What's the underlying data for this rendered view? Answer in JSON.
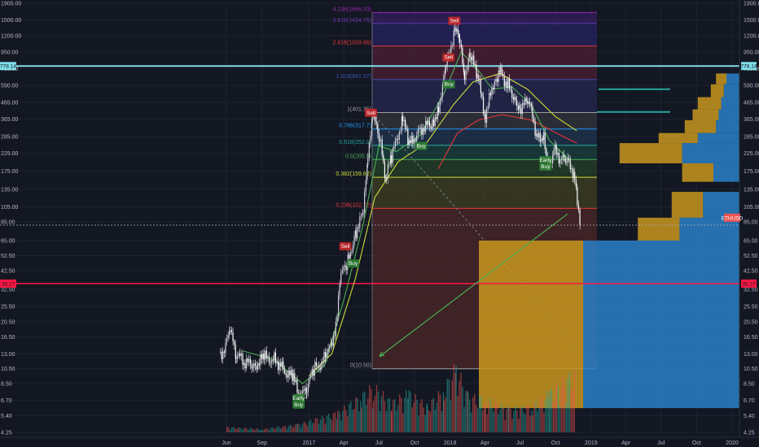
{
  "chart_data": {
    "type": "candlestick",
    "title": "",
    "ylabel": "",
    "xlabel": "",
    "scale": "log",
    "ylim": [
      4.25,
      1900
    ],
    "grid": true,
    "colors": {
      "background": "#131722",
      "up": "#26a69a",
      "down": "#ef5350",
      "ma_fast": "#4caf50",
      "ma_mid": "#cddc39",
      "ma_slow": "#e53935",
      "cyan": "#80deea",
      "red_line": "#ff1744",
      "profile_up": "#2a80c8",
      "profile_down": "#c8961e"
    },
    "y_ticks": [
      "1900.00",
      "1500.00",
      "1200.00",
      "950.00",
      "750.00",
      "590.00",
      "465.00",
      "365.00",
      "285.00",
      "225.00",
      "175.00",
      "135.00",
      "105.00",
      "85.00",
      "65.00",
      "52.50",
      "42.50",
      "32.50",
      "25.50",
      "20.50",
      "16.50",
      "13.00",
      "10.50",
      "8.50",
      "6.70",
      "5.40",
      "4.25"
    ],
    "x_ticks": [
      "Jun",
      "Sep",
      "2017",
      "Apr",
      "Jul",
      "Oct",
      "2018",
      "Apr",
      "Jul",
      "Oct",
      "2019",
      "Apr",
      "Jul",
      "Oct",
      "2020"
    ],
    "price_labels": [
      {
        "text": "778.14",
        "value": 778.14,
        "color": "#80deea"
      },
      {
        "text": "35.27",
        "value": 35.27,
        "color": "#ff1744"
      },
      {
        "text": "ETHUSD",
        "value": 90,
        "color": "#ef5350"
      }
    ],
    "fib_levels": [
      {
        "label": "4.236(1666.33)",
        "value": 1666.33,
        "color": "#9c27b0"
      },
      {
        "label": "3.618(1424.76)",
        "value": 1424.76,
        "color": "#673ab7"
      },
      {
        "label": "2.618(1033.86)",
        "value": 1033.86,
        "color": "#e53935"
      },
      {
        "label": "1.618(641.97)",
        "value": 641.97,
        "color": "#3f51b5"
      },
      {
        "label": "1(401.35)",
        "value": 401.35,
        "color": "#9e9e9e"
      },
      {
        "label": "0.786(317.7)",
        "value": 317.7,
        "color": "#2196f3"
      },
      {
        "label": "0.618(252.0)",
        "value": 252.0,
        "color": "#26a69a"
      },
      {
        "label": "0.5(205.9)",
        "value": 205.9,
        "color": "#4caf50"
      },
      {
        "label": "0.382(159.82)",
        "value": 159.82,
        "color": "#cddc39"
      },
      {
        "label": "0.236(102.72)",
        "value": 102.72,
        "color": "#e53935"
      },
      {
        "label": "0(10.50)",
        "value": 10.5,
        "color": "#9e9e9e"
      }
    ],
    "signals": [
      {
        "text": "Sell",
        "kind": "sell",
        "date": "2018-01-12",
        "value": 1480
      },
      {
        "text": "Sell",
        "kind": "sell",
        "date": "2017-12-28",
        "value": 880
      },
      {
        "text": "Buy",
        "kind": "buy",
        "date": "2017-12-29",
        "value": 600
      },
      {
        "text": "Sell",
        "kind": "sell",
        "date": "2017-06-10",
        "value": 400
      },
      {
        "text": "Buy",
        "kind": "buy",
        "date": "2017-10-18",
        "value": 250
      },
      {
        "text": "Sell",
        "kind": "sell",
        "date": "2017-04-05",
        "value": 60
      },
      {
        "text": "Buy",
        "kind": "buy",
        "date": "2017-04-25",
        "value": 47
      },
      {
        "text": "Early Buy",
        "kind": "buy",
        "date": "2018-09-05",
        "value": 195
      },
      {
        "text": "Early Buy",
        "kind": "buy",
        "date": "2016-12-05",
        "value": 6.6
      }
    ],
    "price_series": [
      {
        "date": "2016-05-15",
        "value": 12.5
      },
      {
        "date": "2016-06-10",
        "value": 17.5
      },
      {
        "date": "2016-06-25",
        "value": 13.0
      },
      {
        "date": "2016-07-15",
        "value": 11.5
      },
      {
        "date": "2016-08-10",
        "value": 11.0
      },
      {
        "date": "2016-09-05",
        "value": 12.2
      },
      {
        "date": "2016-10-05",
        "value": 12.0
      },
      {
        "date": "2016-10-25",
        "value": 10.5
      },
      {
        "date": "2016-11-20",
        "value": 9.0
      },
      {
        "date": "2016-12-10",
        "value": 7.0
      },
      {
        "date": "2016-12-25",
        "value": 8.2
      },
      {
        "date": "2017-01-15",
        "value": 10.5
      },
      {
        "date": "2017-02-15",
        "value": 12.5
      },
      {
        "date": "2017-03-10",
        "value": 19.0
      },
      {
        "date": "2017-03-20",
        "value": 38.0
      },
      {
        "date": "2017-04-10",
        "value": 48.0
      },
      {
        "date": "2017-05-01",
        "value": 75.0
      },
      {
        "date": "2017-05-20",
        "value": 95.0
      },
      {
        "date": "2017-06-01",
        "value": 230.0
      },
      {
        "date": "2017-06-13",
        "value": 390.0
      },
      {
        "date": "2017-07-01",
        "value": 280.0
      },
      {
        "date": "2017-07-16",
        "value": 160.0
      },
      {
        "date": "2017-08-01",
        "value": 210.0
      },
      {
        "date": "2017-08-30",
        "value": 370.0
      },
      {
        "date": "2017-09-15",
        "value": 250.0
      },
      {
        "date": "2017-10-15",
        "value": 320.0
      },
      {
        "date": "2017-11-15",
        "value": 340.0
      },
      {
        "date": "2017-12-01",
        "value": 440.0
      },
      {
        "date": "2017-12-20",
        "value": 760.0
      },
      {
        "date": "2018-01-13",
        "value": 1380.0
      },
      {
        "date": "2018-01-25",
        "value": 1050.0
      },
      {
        "date": "2018-02-06",
        "value": 700.0
      },
      {
        "date": "2018-02-20",
        "value": 900.0
      },
      {
        "date": "2018-03-10",
        "value": 700.0
      },
      {
        "date": "2018-04-01",
        "value": 380.0
      },
      {
        "date": "2018-04-25",
        "value": 650.0
      },
      {
        "date": "2018-05-10",
        "value": 720.0
      },
      {
        "date": "2018-05-30",
        "value": 580.0
      },
      {
        "date": "2018-06-15",
        "value": 500.0
      },
      {
        "date": "2018-06-29",
        "value": 430.0
      },
      {
        "date": "2018-07-22",
        "value": 470.0
      },
      {
        "date": "2018-08-14",
        "value": 280.0
      },
      {
        "date": "2018-08-30",
        "value": 290.0
      },
      {
        "date": "2018-09-12",
        "value": 180.0
      },
      {
        "date": "2018-09-25",
        "value": 235.0
      },
      {
        "date": "2018-10-15",
        "value": 205.0
      },
      {
        "date": "2018-10-31",
        "value": 200.0
      },
      {
        "date": "2018-11-15",
        "value": 175.0
      },
      {
        "date": "2018-11-25",
        "value": 110.0
      },
      {
        "date": "2018-12-02",
        "value": 90.0
      }
    ],
    "ma_fast": [
      {
        "date": "2016-07-15",
        "value": 13.5
      },
      {
        "date": "2016-10-01",
        "value": 12.0
      },
      {
        "date": "2016-12-15",
        "value": 8.5
      },
      {
        "date": "2017-02-10",
        "value": 11.0
      },
      {
        "date": "2017-04-01",
        "value": 28.0
      },
      {
        "date": "2017-05-20",
        "value": 80.0
      },
      {
        "date": "2017-07-01",
        "value": 250.0
      },
      {
        "date": "2017-08-15",
        "value": 230.0
      },
      {
        "date": "2017-10-15",
        "value": 290.0
      },
      {
        "date": "2017-12-15",
        "value": 520.0
      },
      {
        "date": "2018-01-30",
        "value": 950.0
      },
      {
        "date": "2018-03-10",
        "value": 760.0
      },
      {
        "date": "2018-04-20",
        "value": 560.0
      },
      {
        "date": "2018-06-10",
        "value": 580.0
      },
      {
        "date": "2018-08-01",
        "value": 440.0
      },
      {
        "date": "2018-09-15",
        "value": 270.0
      },
      {
        "date": "2018-11-01",
        "value": 210.0
      }
    ],
    "ma_mid": [
      {
        "date": "2017-01-01",
        "value": 9.5
      },
      {
        "date": "2017-03-01",
        "value": 13.0
      },
      {
        "date": "2017-05-01",
        "value": 38.0
      },
      {
        "date": "2017-06-20",
        "value": 120.0
      },
      {
        "date": "2017-08-20",
        "value": 200.0
      },
      {
        "date": "2017-11-01",
        "value": 260.0
      },
      {
        "date": "2018-01-10",
        "value": 450.0
      },
      {
        "date": "2018-03-01",
        "value": 620.0
      },
      {
        "date": "2018-05-10",
        "value": 700.0
      },
      {
        "date": "2018-07-20",
        "value": 560.0
      },
      {
        "date": "2018-09-30",
        "value": 380.0
      },
      {
        "date": "2018-11-25",
        "value": 310.0
      }
    ],
    "ma_slow": [
      {
        "date": "2017-12-01",
        "value": 180.0
      },
      {
        "date": "2018-01-20",
        "value": 300.0
      },
      {
        "date": "2018-03-15",
        "value": 360.0
      },
      {
        "date": "2018-05-15",
        "value": 390.0
      },
      {
        "date": "2018-08-01",
        "value": 360.0
      },
      {
        "date": "2018-10-15",
        "value": 290.0
      },
      {
        "date": "2018-11-25",
        "value": 260.0
      }
    ],
    "volume_profile": [
      {
        "price_low": 600,
        "price_high": 700,
        "up": 0.05,
        "down": 0.04
      },
      {
        "price_low": 500,
        "price_high": 600,
        "up": 0.06,
        "down": 0.05
      },
      {
        "price_low": 420,
        "price_high": 500,
        "up": 0.07,
        "down": 0.09
      },
      {
        "price_low": 360,
        "price_high": 420,
        "up": 0.08,
        "down": 0.1
      },
      {
        "price_low": 300,
        "price_high": 360,
        "up": 0.09,
        "down": 0.12
      },
      {
        "price_low": 260,
        "price_high": 300,
        "up": 0.16,
        "down": 0.15
      },
      {
        "price_low": 195,
        "price_high": 260,
        "up": 0.22,
        "down": 0.24
      },
      {
        "price_low": 150,
        "price_high": 195,
        "up": 0.1,
        "down": 0.12
      },
      {
        "price_low": 90,
        "price_high": 130,
        "up": 0.14,
        "down": 0.12
      },
      {
        "price_low": 65,
        "price_high": 90,
        "up": 0.23,
        "down": 0.16
      },
      {
        "price_low": 6,
        "price_high": 65,
        "up": 0.6,
        "down": 0.4
      }
    ],
    "volume": [
      {
        "date": "2016-06-01",
        "value": 0.08
      },
      {
        "date": "2016-09-01",
        "value": 0.05
      },
      {
        "date": "2016-12-01",
        "value": 0.12
      },
      {
        "date": "2017-03-15",
        "value": 0.3
      },
      {
        "date": "2017-05-15",
        "value": 0.55
      },
      {
        "date": "2017-06-15",
        "value": 0.7
      },
      {
        "date": "2017-08-01",
        "value": 0.45
      },
      {
        "date": "2017-09-15",
        "value": 0.6
      },
      {
        "date": "2017-11-01",
        "value": 0.4
      },
      {
        "date": "2017-12-15",
        "value": 0.65
      },
      {
        "date": "2018-01-15",
        "value": 1.0
      },
      {
        "date": "2018-02-15",
        "value": 0.55
      },
      {
        "date": "2018-04-01",
        "value": 0.5
      },
      {
        "date": "2018-06-01",
        "value": 0.35
      },
      {
        "date": "2018-08-01",
        "value": 0.4
      },
      {
        "date": "2018-09-15",
        "value": 0.6
      },
      {
        "date": "2018-11-20",
        "value": 0.9
      }
    ]
  }
}
